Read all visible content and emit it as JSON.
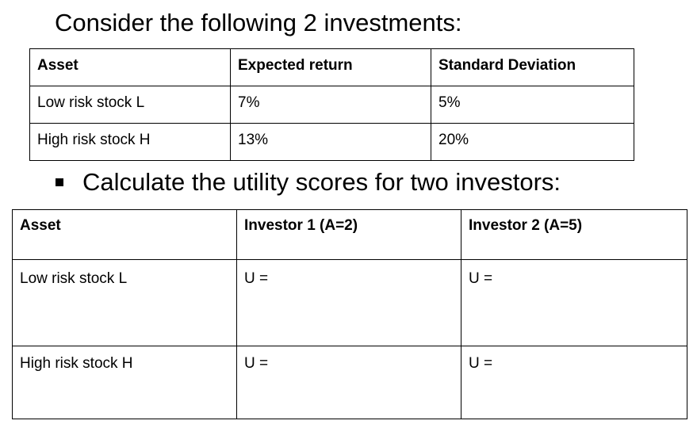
{
  "heading": "Consider the following 2 investments:",
  "investments_table": {
    "headers": [
      "Asset",
      "Expected return",
      "Standard Deviation"
    ],
    "rows": [
      [
        "Low risk stock L",
        "7%",
        "5%"
      ],
      [
        "High risk stock H",
        "13%",
        "20%"
      ]
    ]
  },
  "bullet": {
    "text": "Calculate the utility scores for two investors:"
  },
  "utility_table": {
    "headers": [
      "Asset",
      "Investor 1 (A=2)",
      "Investor 2 (A=5)"
    ],
    "rows": [
      [
        "Low risk stock L",
        "U =",
        "U ="
      ],
      [
        "High risk stock H",
        "U =",
        "U ="
      ]
    ]
  }
}
